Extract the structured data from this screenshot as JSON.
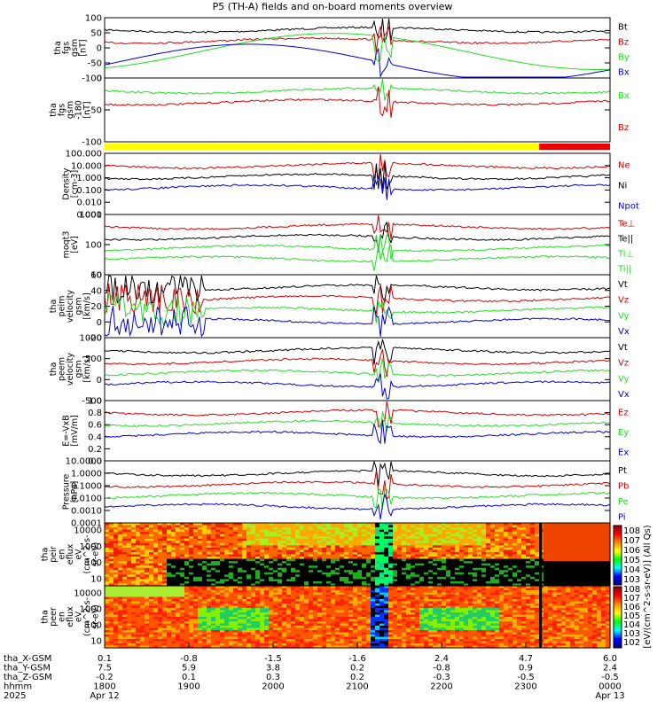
{
  "title": "P5 (TH-A) fields and on-board moments overview",
  "colors": {
    "black": "#000000",
    "red": "#cc0000",
    "green": "#22dd22",
    "blue": "#0000cc",
    "yellow": "#ffff00",
    "barred": "#ee0000"
  },
  "chart_data": [
    {
      "type": "line",
      "ylabel": [
        "tha",
        "fgs",
        "gsm",
        "[nT]"
      ],
      "yticks": [
        "100",
        "50",
        "0",
        "-50",
        "-100"
      ],
      "legend": [
        "Bt",
        "Bz",
        "By",
        "Bx"
      ]
    },
    {
      "type": "line",
      "ylabel": [
        "tha",
        "fgs",
        "gsm",
        "-180",
        "[nT]"
      ],
      "yticks": [
        "0",
        "-50",
        "-100"
      ],
      "legend": [
        "Bx",
        "Bz"
      ]
    },
    {
      "type": "line",
      "log": true,
      "ylabel": [
        "Density",
        "[cm-3]"
      ],
      "yticks": [
        "100.000",
        "10.000",
        "1.000",
        "0.100",
        "0.010",
        "0.001"
      ],
      "legend": [
        "Ne",
        "Ni",
        "Npot"
      ]
    },
    {
      "type": "line",
      "log": true,
      "ylabel": [
        "moqt3",
        "[eV]"
      ],
      "yticks": [
        "1000",
        "100",
        "10"
      ],
      "legend": [
        "Te⊥",
        "Te||",
        "Ti⊥",
        "Ti||"
      ]
    },
    {
      "type": "line",
      "ylabel": [
        "tha",
        "peim",
        "velocity",
        "gsm",
        "[km/s]"
      ],
      "yticks": [
        "60",
        "40",
        "20",
        "0",
        "-20"
      ],
      "legend": [
        "Vt",
        "Vz",
        "Vy",
        "Vx"
      ]
    },
    {
      "type": "line",
      "ylabel": [
        "tha",
        "peem",
        "velocity",
        "gsm",
        "[km/s]"
      ],
      "yticks": [
        "1000",
        "500",
        "0",
        "-500"
      ],
      "legend": [
        "Vt",
        "Vz",
        "Vy",
        "Vx"
      ]
    },
    {
      "type": "line",
      "ylabel": [
        "E=-VxB",
        "[mV/m]"
      ],
      "yticks": [
        "1.0",
        "0.8",
        "0.6",
        "0.4",
        "0.2",
        "0.0"
      ],
      "legend": [
        "Ez",
        "Ey",
        "Ex"
      ]
    },
    {
      "type": "line",
      "log": true,
      "ylabel": [
        "Pressure",
        "[nPa]"
      ],
      "yticks": [
        "10.0000",
        "1.0000",
        "0.1000",
        "0.0100",
        "0.0010",
        "0.0001"
      ],
      "legend": [
        "Pt",
        "Pb",
        "Pe",
        "Pi"
      ]
    },
    {
      "type": "heatmap",
      "ylabel": [
        "tha",
        "peir",
        "en",
        "eflux",
        "eV",
        "(cm^2-s-",
        "sr-eV)"
      ],
      "yticks": [
        "10000",
        "1000",
        "100",
        "10"
      ]
    },
    {
      "type": "heatmap",
      "ylabel": [
        "tha",
        "peer",
        "en",
        "eflux",
        "eV",
        "(cm^2-s-",
        "sr-eV)"
      ],
      "yticks": [
        "10000",
        "1000",
        "100",
        "10"
      ]
    }
  ],
  "colorbar": {
    "label": "[eV/(cm^2-s-sr-eV)] (All Qs)",
    "top_labels": [
      "10^8",
      "10^7",
      "10^6",
      "10^5",
      "10^4",
      "10^3"
    ],
    "bottom_labels": [
      "10^8",
      "10^7",
      "10^6",
      "10^5",
      "10^4",
      "10^3",
      "10^2"
    ]
  },
  "xaxis": {
    "row_labels": [
      "tha_X-GSM",
      "tha_Y-GSM",
      "tha_Z-GSM",
      "hhmm",
      "2025"
    ],
    "columns": [
      [
        "0.1",
        "7.5",
        "-0.2",
        "1800",
        "Apr 12"
      ],
      [
        "-0.8",
        "5.9",
        "0.1",
        "1900",
        ""
      ],
      [
        "-1.5",
        "3.8",
        "0.3",
        "2000",
        ""
      ],
      [
        "-1.6",
        "0.2",
        "0.2",
        "2100",
        ""
      ],
      [
        "2.4",
        "-0.8",
        "-0.3",
        "2200",
        ""
      ],
      [
        "4.7",
        "0.9",
        "-0.5",
        "2300",
        ""
      ],
      [
        "6.0",
        "2.4",
        "-0.5",
        "0000",
        "Apr 13"
      ]
    ]
  }
}
